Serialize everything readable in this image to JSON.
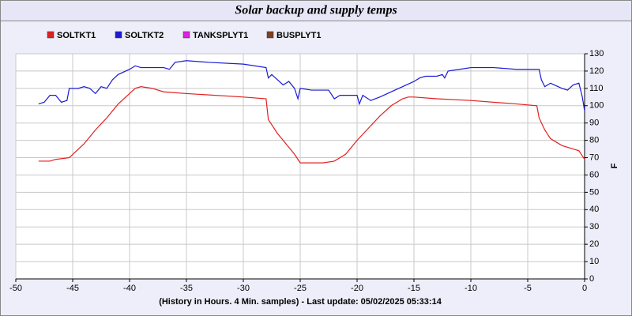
{
  "chart_data": {
    "type": "line",
    "title": "Solar backup and supply temps",
    "xlabel": "(History in Hours. 4 Min. samples) - Last update: 05/02/2025 05:33:14",
    "ylabel": "F",
    "xlim": [
      -50,
      0
    ],
    "xticks": [
      -50,
      -45,
      -40,
      -35,
      -30,
      -25,
      -20,
      -15,
      -10,
      -5,
      0
    ],
    "ylim": [
      0,
      130
    ],
    "yticks": [
      0,
      10,
      20,
      30,
      40,
      50,
      60,
      70,
      80,
      90,
      100,
      110,
      120,
      130
    ],
    "grid": true,
    "series": [
      {
        "name": "SOLTKT1",
        "color": "#e02020",
        "x": [
          -48,
          -47,
          -46.5,
          -45.3,
          -44,
          -43,
          -42,
          -41,
          -40,
          -39.5,
          -39,
          -38,
          -37,
          -35,
          -30,
          -28,
          -27.8,
          -27,
          -26,
          -25.5,
          -25,
          -24,
          -23,
          -22,
          -21,
          -20,
          -19,
          -18,
          -17,
          -16,
          -15.5,
          -15,
          -13,
          -10,
          -6,
          -4.2,
          -4,
          -3.5,
          -3,
          -2,
          -1,
          -0.5,
          0
        ],
        "values": [
          68,
          68,
          69,
          70,
          78,
          86,
          93,
          101,
          107,
          110,
          111,
          110,
          108,
          107,
          105,
          104,
          92,
          84,
          76,
          72,
          67,
          67,
          67,
          68,
          72,
          80,
          87,
          94,
          100,
          104,
          105,
          105,
          104,
          103,
          101,
          100,
          93,
          86,
          81,
          77,
          75,
          74,
          69
        ]
      },
      {
        "name": "SOLTKT2",
        "color": "#1a1ad8",
        "x": [
          -48,
          -47.5,
          -47,
          -46.5,
          -46,
          -45.5,
          -45.3,
          -44.5,
          -44,
          -43.5,
          -43,
          -42.5,
          -42,
          -41.5,
          -41,
          -40,
          -39.5,
          -39,
          -37,
          -36.5,
          -36,
          -35,
          -33,
          -30,
          -28,
          -27.8,
          -27.5,
          -27,
          -26.5,
          -26,
          -25.5,
          -25.2,
          -25,
          -24,
          -23,
          -22.5,
          -22,
          -21.5,
          -21,
          -20,
          -19.8,
          -19.5,
          -18.8,
          -18,
          -17,
          -16,
          -15,
          -14.5,
          -14,
          -13,
          -12.5,
          -12.3,
          -12,
          -11,
          -10,
          -8,
          -6,
          -4,
          -3.8,
          -3.5,
          -3,
          -2,
          -1.5,
          -1,
          -0.5,
          -0.2,
          0
        ],
        "values": [
          101,
          102,
          106,
          106,
          102,
          103,
          110,
          110,
          111,
          110,
          107,
          111,
          110,
          115,
          118,
          121,
          123,
          122,
          122,
          121,
          125,
          126,
          125,
          124,
          122,
          116,
          118,
          115,
          112,
          114,
          110,
          104,
          110,
          109,
          109,
          109,
          104,
          106,
          106,
          106,
          101,
          106,
          103,
          105,
          108,
          111,
          114,
          116,
          117,
          117,
          118,
          116,
          120,
          121,
          122,
          122,
          121,
          121,
          115,
          111,
          113,
          110,
          109,
          112,
          113,
          105,
          97
        ]
      },
      {
        "name": "TANKSPLYT1",
        "color": "#e020e0",
        "x": [],
        "values": []
      },
      {
        "name": "BUSPLYT1",
        "color": "#804020",
        "x": [],
        "values": []
      }
    ]
  }
}
